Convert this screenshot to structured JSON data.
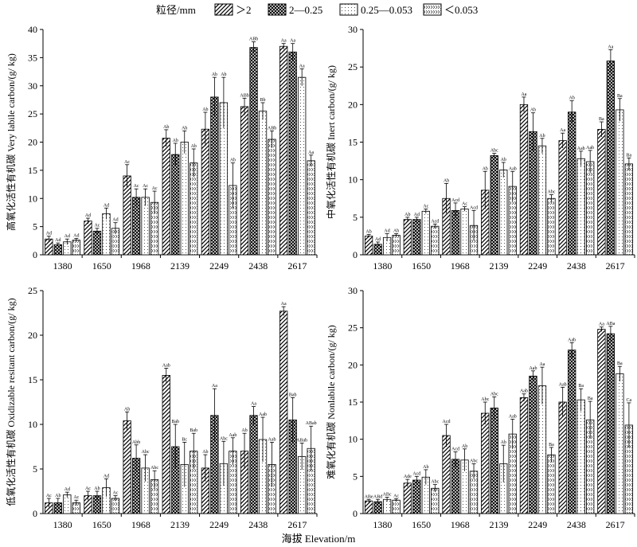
{
  "legend": {
    "title": "粒径/mm",
    "items": [
      {
        "label": "＞2",
        "pattern": "diag"
      },
      {
        "label": "2—0.25",
        "pattern": "cross"
      },
      {
        "label": "0.25—0.053",
        "pattern": "dots"
      },
      {
        "label": "＜0.053",
        "pattern": "chevron"
      }
    ]
  },
  "xlabel": "海拔 Elevation/m",
  "chart_data": [
    {
      "type": "bar",
      "ylabel": "高氧化活性有机碳 Very labile carbon/(g/ kg)",
      "ylim": [
        0,
        40
      ],
      "yticks": [
        0,
        5,
        10,
        15,
        20,
        25,
        30,
        35,
        40
      ],
      "categories": [
        "1380",
        "1650",
        "1968",
        "2139",
        "2249",
        "2438",
        "2617"
      ],
      "series": [
        {
          "name": "＞2",
          "values": [
            2.8,
            6.0,
            14.0,
            20.7,
            22.3,
            26.3,
            37.0
          ],
          "errors": [
            0.5,
            0.5,
            2.0,
            1.5,
            3.0,
            1.5,
            0.5
          ],
          "labels": [
            "Ad",
            "Ad",
            "Ac",
            "Ab",
            "Ab",
            "ABb",
            "Aa"
          ]
        },
        {
          "name": "2—0.25",
          "values": [
            1.8,
            4.2,
            10.2,
            17.8,
            28.0,
            36.8,
            36.0
          ],
          "errors": [
            0.3,
            0.5,
            1.5,
            2.0,
            3.5,
            1.0,
            1.5
          ],
          "labels": [
            "Ad",
            "Ac",
            "Ac",
            "Ab",
            "Ab",
            "ABb",
            "Aa"
          ]
        },
        {
          "name": "0.25—0.053",
          "values": [
            2.3,
            7.3,
            10.2,
            20.0,
            27.0,
            25.5,
            31.5
          ],
          "errors": [
            0.5,
            1.0,
            1.5,
            2.0,
            4.5,
            1.5,
            1.5
          ],
          "labels": [
            "Ad",
            "Ad",
            "Ac",
            "Ab",
            "Ab",
            "Bb",
            "Aa"
          ]
        },
        {
          "name": "＜0.053",
          "values": [
            2.6,
            4.7,
            9.3,
            16.3,
            12.3,
            20.5,
            16.7
          ],
          "errors": [
            0.3,
            1.0,
            2.0,
            2.5,
            4.0,
            1.5,
            1.0
          ],
          "labels": [
            "Ad",
            "Ad",
            "Ac",
            "Ab",
            "Ab",
            "ABb",
            "Aa"
          ]
        }
      ]
    },
    {
      "type": "bar",
      "ylabel": "中氧化活性有机碳 Inert carbon/(g/ kg)",
      "ylim": [
        0,
        30
      ],
      "yticks": [
        0,
        5,
        10,
        15,
        20,
        25,
        30
      ],
      "categories": [
        "1380",
        "1650",
        "1968",
        "2139",
        "2249",
        "2438",
        "2617"
      ],
      "series": [
        {
          "name": "＞2",
          "values": [
            2.5,
            4.7,
            7.5,
            8.6,
            20.0,
            15.2,
            16.7
          ],
          "errors": [
            0.2,
            0.3,
            2.0,
            2.5,
            1.0,
            1.0,
            1.0
          ],
          "labels": [
            "Ab",
            "Ab",
            "Ab",
            "Ab",
            "Aa",
            "Aa",
            "Ba"
          ]
        },
        {
          "name": "2—0.25",
          "values": [
            1.4,
            4.7,
            5.9,
            13.2,
            16.4,
            19.0,
            25.8
          ],
          "errors": [
            0.3,
            0.3,
            1.0,
            0.3,
            2.5,
            1.5,
            1.5
          ],
          "labels": [
            "Ad",
            "Ad",
            "Acd",
            "Abc",
            "Ab",
            "Ab",
            "Aa"
          ]
        },
        {
          "name": "0.25—0.053",
          "values": [
            2.3,
            5.8,
            6.1,
            11.3,
            14.5,
            12.8,
            19.3
          ],
          "errors": [
            0.5,
            0.3,
            0.3,
            1.0,
            1.0,
            1.0,
            1.5
          ],
          "labels": [
            "Ad",
            "Ac",
            "Ac",
            "Ab",
            "Ab",
            "Aab",
            "Ba"
          ]
        },
        {
          "name": "＜0.053",
          "values": [
            2.6,
            3.8,
            3.9,
            9.1,
            7.5,
            12.4,
            12.1
          ],
          "errors": [
            0.2,
            0.3,
            2.0,
            2.0,
            0.5,
            1.5,
            0.8
          ],
          "labels": [
            "Ab",
            "Acd",
            "Acd",
            "Aab",
            "Abc",
            "Aab",
            "Ba"
          ]
        }
      ]
    },
    {
      "type": "bar",
      "ylabel": "低氧化活性有机碳 Oxidizable resitant carbon/(g/ kg)",
      "ylim": [
        0,
        25
      ],
      "yticks": [
        0,
        5,
        10,
        15,
        20,
        25
      ],
      "categories": [
        "1380",
        "1650",
        "1968",
        "2139",
        "2249",
        "2438",
        "2617"
      ],
      "series": [
        {
          "name": "＞2",
          "values": [
            1.2,
            2.0,
            10.4,
            15.5,
            5.1,
            7.0,
            22.7
          ],
          "errors": [
            0.5,
            0.5,
            1.0,
            0.8,
            1.5,
            2.0,
            0.5
          ],
          "labels": [
            "Ac",
            "Ac",
            "Ab",
            "Aab",
            "Ab",
            "Ab",
            "Aa"
          ]
        },
        {
          "name": "2—0.25",
          "values": [
            1.2,
            2.0,
            6.2,
            7.5,
            11.0,
            11.0,
            10.5
          ],
          "errors": [
            0.5,
            0.5,
            1.5,
            2.5,
            3.0,
            1.0,
            2.5
          ],
          "labels": [
            "Ab",
            "Ab",
            "Abb",
            "Bab",
            "Aa",
            "Aa",
            "Bab"
          ]
        },
        {
          "name": "0.25—0.053",
          "values": [
            2.1,
            2.9,
            5.1,
            5.5,
            5.6,
            8.3,
            6.4
          ],
          "errors": [
            0.3,
            1.0,
            1.5,
            2.5,
            2.5,
            2.5,
            1.5
          ],
          "labels": [
            "Ad",
            "Ad",
            "Abc",
            "Bc",
            "Abc",
            "Aab",
            "ABab"
          ]
        },
        {
          "name": "＜0.053",
          "values": [
            1.2,
            1.7,
            3.8,
            7.0,
            7.0,
            5.5,
            7.3
          ],
          "errors": [
            0.3,
            0.3,
            1.0,
            2.0,
            1.5,
            2.5,
            2.5
          ],
          "labels": [
            "Ac",
            "Ac",
            "Abc",
            "Bab",
            "Aab",
            "Aab",
            "ABab"
          ]
        }
      ]
    },
    {
      "type": "bar",
      "ylabel": "难氧化有机碳 Nonlabile carbon/(g/ kg)",
      "ylim": [
        0,
        30
      ],
      "yticks": [
        0,
        5,
        10,
        15,
        20,
        25,
        30
      ],
      "categories": [
        "1380",
        "1650",
        "1968",
        "2139",
        "2249",
        "2438",
        "2617"
      ],
      "series": [
        {
          "name": "＞2",
          "values": [
            1.7,
            4.1,
            10.5,
            13.5,
            15.6,
            15.0,
            24.8
          ],
          "errors": [
            0.2,
            0.5,
            1.5,
            1.5,
            0.5,
            2.0,
            0.3
          ],
          "labels": [
            "ABe",
            "Ade",
            "Acd",
            "Abc",
            "Aab",
            "Aab",
            "Aa"
          ]
        },
        {
          "name": "2—0.25",
          "values": [
            1.6,
            4.5,
            7.3,
            14.2,
            18.5,
            22.0,
            24.2
          ],
          "errors": [
            0.3,
            0.5,
            1.0,
            1.5,
            0.7,
            1.0,
            1.0
          ],
          "labels": [
            "ABd",
            "Acd",
            "Acd",
            "Abc",
            "Aab",
            "Aab",
            "ABa"
          ]
        },
        {
          "name": "0.25—0.053",
          "values": [
            1.9,
            4.9,
            7.2,
            6.7,
            17.2,
            15.3,
            18.8
          ],
          "errors": [
            0.3,
            1.0,
            1.5,
            2.5,
            2.5,
            1.5,
            1.0
          ],
          "labels": [
            "ABc",
            "Ab",
            "Ab",
            "Ab",
            "Aa",
            "Ba",
            "Ba"
          ]
        },
        {
          "name": "＜0.053",
          "values": [
            1.8,
            3.4,
            5.7,
            10.7,
            7.9,
            12.6,
            11.9
          ],
          "errors": [
            0.2,
            0.5,
            1.0,
            2.0,
            1.0,
            2.5,
            3.0
          ],
          "labels": [
            "Ac",
            "Abc",
            "Abc",
            "Aab",
            "Ba",
            "Ba",
            "Ca"
          ]
        }
      ]
    }
  ]
}
